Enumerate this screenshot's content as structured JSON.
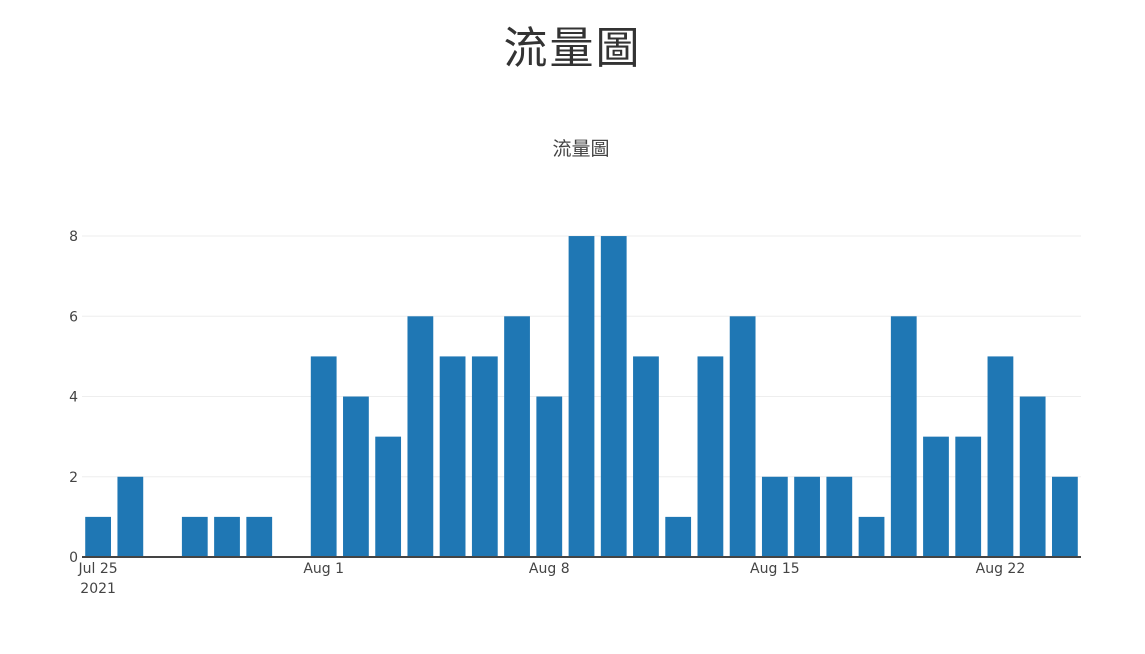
{
  "page": {
    "title": "流量圖"
  },
  "colors": {
    "bar": "#1f77b4",
    "grid": "#eeeeee",
    "axis": "#444444"
  },
  "chart_data": {
    "type": "bar",
    "title": "流量圖",
    "x": [
      "2021-07-25",
      "2021-07-26",
      "2021-07-27",
      "2021-07-28",
      "2021-07-29",
      "2021-07-30",
      "2021-07-31",
      "2021-08-01",
      "2021-08-02",
      "2021-08-03",
      "2021-08-04",
      "2021-08-05",
      "2021-08-06",
      "2021-08-07",
      "2021-08-08",
      "2021-08-09",
      "2021-08-10",
      "2021-08-11",
      "2021-08-12",
      "2021-08-13",
      "2021-08-14",
      "2021-08-15",
      "2021-08-16",
      "2021-08-17",
      "2021-08-18",
      "2021-08-19",
      "2021-08-20",
      "2021-08-21",
      "2021-08-22",
      "2021-08-23",
      "2021-08-24"
    ],
    "values": [
      1,
      2,
      0,
      1,
      1,
      1,
      0,
      5,
      4,
      3,
      6,
      5,
      5,
      6,
      4,
      8,
      8,
      5,
      1,
      5,
      6,
      2,
      2,
      2,
      1,
      6,
      3,
      3,
      5,
      4,
      2
    ],
    "x_ticks": [
      {
        "date": "2021-07-25",
        "label": "Jul 25",
        "sublabel": "2021"
      },
      {
        "date": "2021-08-01",
        "label": "Aug 1"
      },
      {
        "date": "2021-08-08",
        "label": "Aug 8"
      },
      {
        "date": "2021-08-15",
        "label": "Aug 15"
      },
      {
        "date": "2021-08-22",
        "label": "Aug 22"
      }
    ],
    "y_ticks": [
      0,
      2,
      4,
      6,
      8
    ],
    "ylim": [
      0,
      8.5
    ],
    "grid": true,
    "legend": false
  }
}
